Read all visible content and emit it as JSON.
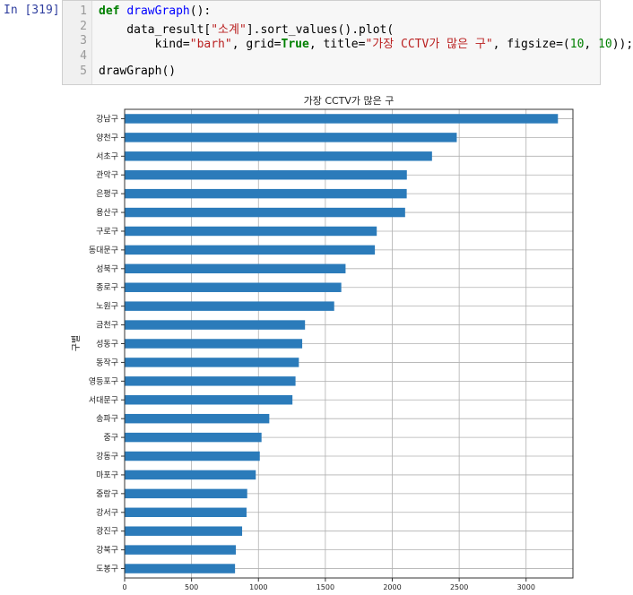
{
  "cell": {
    "prompt": "In [319]:",
    "line_numbers": [
      "1",
      "2",
      "3",
      "4",
      "5"
    ],
    "code": {
      "line1_kw": "def",
      "line1_fn": "drawGraph",
      "line1_rest": "():",
      "line2_a": "    data_result[",
      "line2_str": "\"소계\"",
      "line2_b": "].sort_values().plot(",
      "line3_a": "        kind=",
      "line3_s1": "\"barh\"",
      "line3_b": ", grid=",
      "line3_true": "True",
      "line3_c": ", title=",
      "line3_s2": "\"가장 CCTV가 많은 구\"",
      "line3_d": ", figsize=(",
      "line3_n1": "10",
      "line3_e": ", ",
      "line3_n2": "10",
      "line3_f": "));",
      "line5": "drawGraph()"
    }
  },
  "chart_data": {
    "type": "bar",
    "orientation": "horizontal",
    "title": "가장 CCTV가 많은 구",
    "ylabel": "구별",
    "xlabel": "",
    "grid": true,
    "xlim": [
      0,
      3350
    ],
    "xticks": [
      0,
      500,
      1000,
      1500,
      2000,
      2500,
      3000
    ],
    "bar_color": "#2b7bba",
    "categories": [
      "강남구",
      "양천구",
      "서초구",
      "관악구",
      "은평구",
      "용산구",
      "구로구",
      "동대문구",
      "성북구",
      "종로구",
      "노원구",
      "금천구",
      "성동구",
      "동작구",
      "영등포구",
      "서대문구",
      "송파구",
      "중구",
      "강동구",
      "마포구",
      "중랑구",
      "강서구",
      "광진구",
      "강북구",
      "도봉구"
    ],
    "values": [
      3238,
      2482,
      2297,
      2109,
      2108,
      2096,
      1884,
      1870,
      1651,
      1619,
      1566,
      1348,
      1327,
      1302,
      1277,
      1254,
      1081,
      1023,
      1010,
      980,
      916,
      911,
      878,
      831,
      825
    ]
  }
}
